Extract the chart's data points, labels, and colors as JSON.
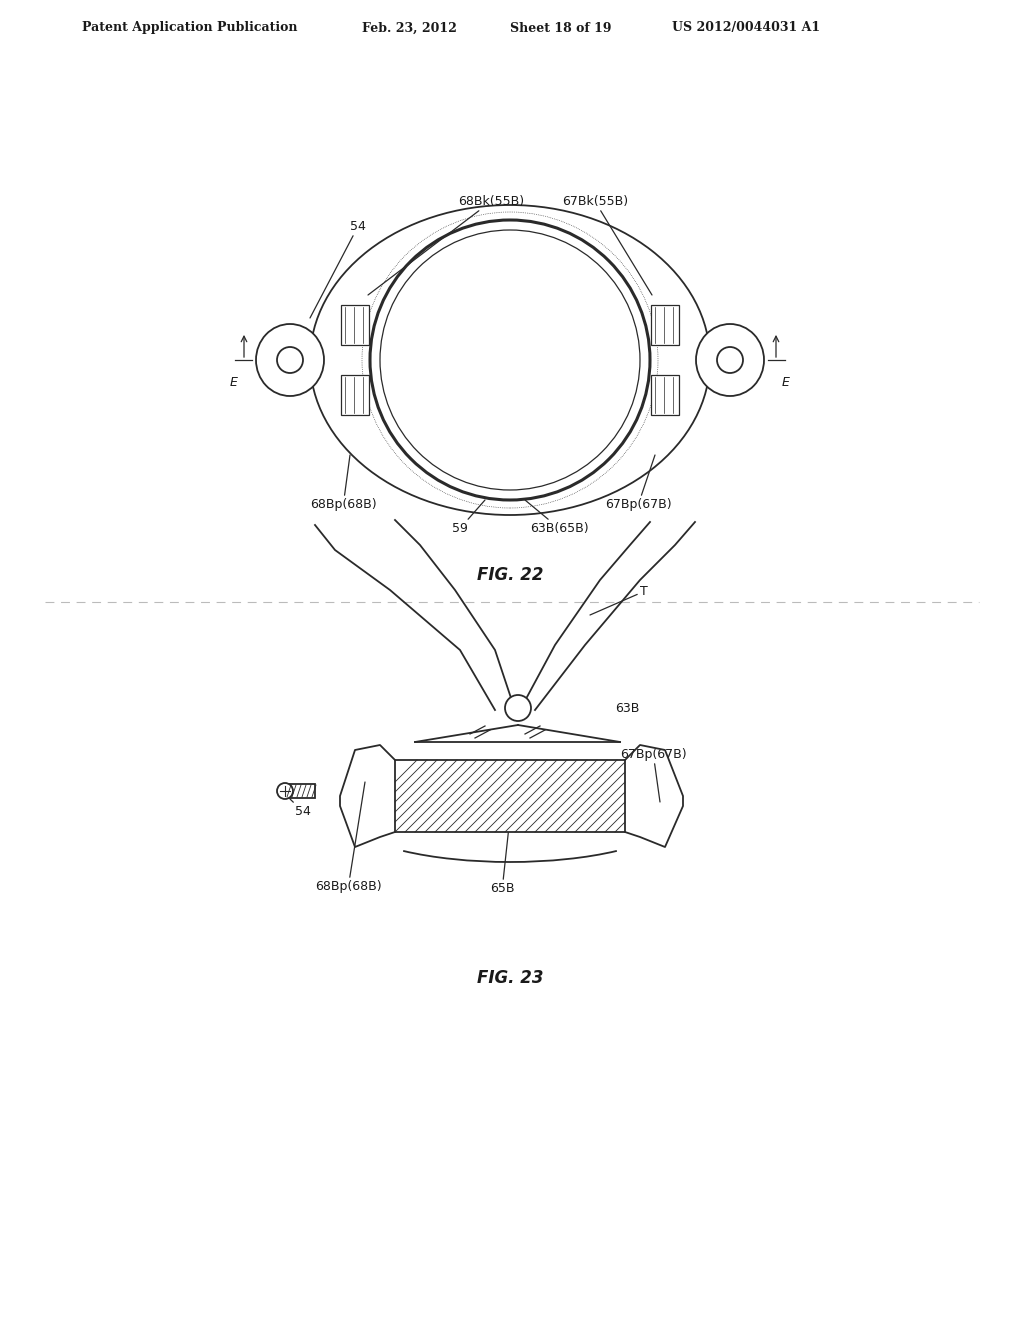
{
  "bg_color": "#ffffff",
  "header_text": "Patent Application Publication",
  "header_date": "Feb. 23, 2012",
  "header_sheet": "Sheet 18 of 19",
  "header_patent": "US 2012/0044031 A1",
  "fig22_label": "FIG. 22",
  "fig23_label": "FIG. 23",
  "line_color": "#2a2a2a",
  "text_color": "#1a1a1a",
  "font_size_header": 9,
  "font_size_annot": 9
}
